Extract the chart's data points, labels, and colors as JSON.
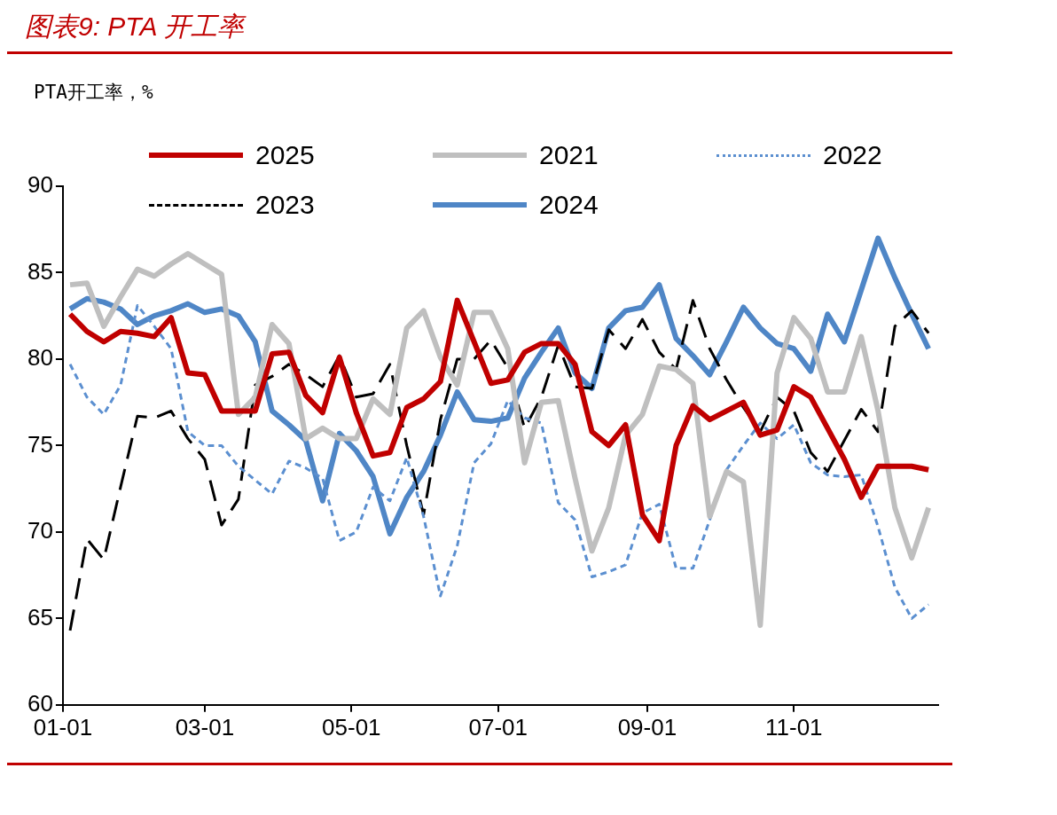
{
  "chart_data": {
    "type": "line",
    "title": "图表9: PTA 开工率",
    "ylabel": "PTA开工率，%",
    "x": [
      "--01-04",
      "--01-11",
      "--01-18",
      "--01-25",
      "--02-01",
      "--02-08",
      "--02-15",
      "--02-22",
      "--03-01",
      "--03-08",
      "--03-15",
      "--03-22",
      "--03-29",
      "--04-05",
      "--04-12",
      "--04-19",
      "--04-26",
      "--05-03",
      "--05-10",
      "--05-17",
      "--05-24",
      "--05-31",
      "--06-07",
      "--06-14",
      "--06-21",
      "--06-28",
      "--07-05",
      "--07-12",
      "--07-19",
      "--07-26",
      "--08-02",
      "--08-09",
      "--08-16",
      "--08-23",
      "--08-30",
      "--09-06",
      "--09-13",
      "--09-20",
      "--09-27",
      "--10-04",
      "--10-11",
      "--10-18",
      "--10-25",
      "--11-01",
      "--11-08",
      "--11-15",
      "--11-22",
      "--11-29",
      "--12-06",
      "--12-13",
      "--12-20",
      "--12-27"
    ],
    "xlim": [
      "--01-01",
      "--12-31"
    ],
    "xticks": [
      {
        "value": "--01-01",
        "label": "01-01"
      },
      {
        "value": "--03-01",
        "label": "03-01"
      },
      {
        "value": "--05-01",
        "label": "05-01"
      },
      {
        "value": "--07-01",
        "label": "07-01"
      },
      {
        "value": "--09-01",
        "label": "09-01"
      },
      {
        "value": "--11-01",
        "label": "11-01"
      }
    ],
    "ylim": [
      60,
      90
    ],
    "yticks": [
      60,
      65,
      70,
      75,
      80,
      85,
      90
    ],
    "legend": "top",
    "marker": "none",
    "series": [
      {
        "name": "2025",
        "color": "#c00000",
        "line_style": "solid",
        "values": [
          82.6,
          81.6,
          81.0,
          81.6,
          81.5,
          81.3,
          82.4,
          79.2,
          79.1,
          77.0,
          77.0,
          77.0,
          80.3,
          80.4,
          77.9,
          76.9,
          80.1,
          76.9,
          74.4,
          74.6,
          77.2,
          77.7,
          78.7,
          83.4,
          81.0,
          78.6,
          78.8,
          80.4,
          80.9,
          80.9,
          79.7,
          75.8,
          75.0,
          76.2,
          71.0,
          69.5,
          75.0,
          77.3,
          76.5,
          77.0,
          77.5,
          75.6,
          75.9,
          78.4,
          77.8,
          76.0,
          74.2,
          72.0,
          73.8,
          73.8,
          73.8,
          73.6
        ]
      },
      {
        "name": "2021",
        "color": "#bfbfbf",
        "line_style": "solid",
        "values": [
          84.3,
          84.4,
          81.9,
          83.6,
          85.2,
          84.8,
          85.5,
          86.1,
          85.5,
          84.9,
          76.8,
          77.8,
          82.0,
          80.9,
          75.4,
          76.0,
          75.4,
          75.4,
          77.7,
          76.8,
          81.8,
          82.8,
          80.1,
          78.5,
          82.7,
          82.7,
          80.6,
          74.0,
          77.5,
          77.6,
          73.1,
          68.9,
          71.4,
          75.6,
          76.8,
          79.6,
          79.4,
          78.6,
          70.9,
          73.5,
          72.9,
          64.6,
          79.2,
          82.4,
          81.2,
          78.1,
          78.1,
          81.3,
          77.0,
          71.4,
          68.5,
          71.4
        ]
      },
      {
        "name": "2022",
        "color": "#5b8fd0",
        "line_style": "dotted",
        "values": [
          79.7,
          77.8,
          76.8,
          78.5,
          83.1,
          81.9,
          80.6,
          75.8,
          75.0,
          75.0,
          73.8,
          73.0,
          72.2,
          74.1,
          73.7,
          73.1,
          69.5,
          70.0,
          72.6,
          71.8,
          74.3,
          70.9,
          66.3,
          69.2,
          74.0,
          75.1,
          77.6,
          76.6,
          76.3,
          71.7,
          70.7,
          67.4,
          67.7,
          68.1,
          71.1,
          71.6,
          67.9,
          67.9,
          70.7,
          73.6,
          75.0,
          76.3,
          75.4,
          76.2,
          74.0,
          73.3,
          73.2,
          73.3,
          70.3,
          66.8,
          65.0,
          65.8
        ]
      },
      {
        "name": "2023",
        "color": "#000000",
        "line_style": "dashed",
        "values": [
          64.3,
          69.6,
          68.4,
          72.6,
          76.7,
          76.6,
          77.0,
          75.4,
          74.2,
          70.4,
          71.9,
          78.5,
          79.0,
          79.7,
          79.1,
          78.4,
          80.2,
          77.8,
          78.0,
          79.7,
          75.0,
          71.0,
          76.5,
          80.0,
          80.0,
          81.1,
          79.5,
          76.0,
          77.8,
          80.8,
          78.4,
          78.3,
          81.7,
          80.6,
          82.3,
          80.4,
          79.4,
          83.4,
          80.6,
          78.8,
          77.2,
          75.8,
          77.8,
          77.0,
          74.6,
          73.5,
          75.3,
          77.1,
          75.8,
          81.9,
          82.8,
          81.5
        ]
      },
      {
        "name": "2024",
        "color": "#4f86c6",
        "line_style": "solid",
        "values": [
          82.9,
          83.5,
          83.3,
          82.9,
          82.0,
          82.5,
          82.8,
          83.2,
          82.7,
          82.9,
          82.5,
          81.0,
          77.0,
          76.2,
          75.3,
          71.8,
          75.7,
          74.7,
          73.2,
          69.9,
          72.0,
          73.5,
          75.6,
          78.1,
          76.5,
          76.4,
          76.6,
          78.9,
          80.4,
          81.8,
          79.2,
          78.3,
          81.8,
          82.8,
          83.0,
          84.3,
          81.2,
          80.2,
          79.1,
          81.0,
          83.0,
          81.8,
          80.9,
          80.6,
          79.3,
          82.6,
          81.0,
          84.0,
          87.0,
          84.7,
          82.6,
          80.6
        ]
      }
    ]
  }
}
